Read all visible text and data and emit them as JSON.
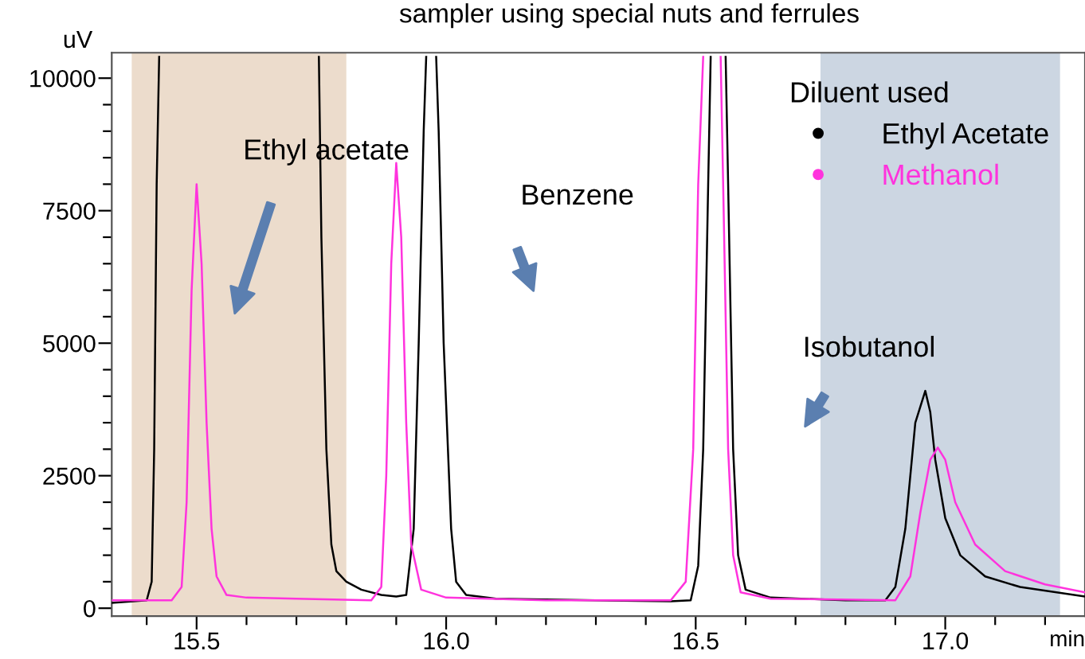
{
  "chart_data": {
    "type": "line",
    "title": "sampler using special nuts and ferrules",
    "ylabel": "uV",
    "xlabel": "min",
    "xlim": [
      15.33,
      17.28
    ],
    "ylim": [
      -150,
      10480
    ],
    "xticks": [
      {
        "value": 15.4,
        "label": null
      },
      {
        "value": 15.5,
        "label": "15.5"
      },
      {
        "value": 15.6,
        "label": null
      },
      {
        "value": 15.7,
        "label": null
      },
      {
        "value": 15.8,
        "label": null
      },
      {
        "value": 15.9,
        "label": null
      },
      {
        "value": 16.0,
        "label": "16.0"
      },
      {
        "value": 16.1,
        "label": null
      },
      {
        "value": 16.2,
        "label": null
      },
      {
        "value": 16.3,
        "label": null
      },
      {
        "value": 16.4,
        "label": null
      },
      {
        "value": 16.5,
        "label": "16.5"
      },
      {
        "value": 16.6,
        "label": null
      },
      {
        "value": 16.7,
        "label": null
      },
      {
        "value": 16.8,
        "label": null
      },
      {
        "value": 16.9,
        "label": null
      },
      {
        "value": 17.0,
        "label": "17.0"
      },
      {
        "value": 17.1,
        "label": null
      },
      {
        "value": 17.2,
        "label": null
      }
    ],
    "yticks": [
      0,
      {
        "value": 500,
        "label": null
      },
      {
        "value": 1000,
        "label": null
      },
      {
        "value": 1500,
        "label": null
      },
      {
        "value": 2000,
        "label": null
      },
      2500,
      {
        "value": 3000,
        "label": null
      },
      {
        "value": 3500,
        "label": null
      },
      {
        "value": 4000,
        "label": null
      },
      {
        "value": 4500,
        "label": null
      },
      5000,
      {
        "value": 5500,
        "label": null
      },
      {
        "value": 6000,
        "label": null
      },
      {
        "value": 6500,
        "label": null
      },
      {
        "value": 7000,
        "label": null
      },
      7500,
      {
        "value": 8000,
        "label": null
      },
      {
        "value": 8500,
        "label": null
      },
      {
        "value": 9000,
        "label": null
      },
      {
        "value": 9500,
        "label": null
      },
      10000
    ],
    "legend_title": "Diluent used",
    "legend": "top right",
    "grid": false,
    "marker": "none",
    "line_style": "solid",
    "series": [
      {
        "name": "Ethyl Acetate",
        "color": "#000000",
        "x": [
          15.33,
          15.4,
          15.41,
          15.415,
          15.42,
          15.425,
          15.43,
          15.74,
          15.745,
          15.75,
          15.76,
          15.77,
          15.78,
          15.8,
          15.83,
          15.87,
          15.9,
          15.92,
          15.935,
          15.945,
          15.955,
          15.96,
          15.97,
          15.98,
          15.985,
          15.995,
          16.01,
          16.02,
          16.04,
          16.1,
          16.3,
          16.45,
          16.49,
          16.505,
          16.515,
          16.525,
          16.53,
          16.545,
          16.56,
          16.565,
          16.575,
          16.585,
          16.6,
          16.65,
          16.8,
          16.88,
          16.9,
          16.92,
          16.94,
          16.96,
          16.97,
          16.98,
          17.0,
          17.03,
          17.08,
          17.15,
          17.28
        ],
        "values": [
          100,
          150,
          500,
          3000,
          8000,
          10400,
          null,
          null,
          10400,
          7000,
          3000,
          1200,
          700,
          500,
          350,
          250,
          220,
          250,
          1500,
          5000,
          9000,
          10400,
          null,
          10400,
          9000,
          5000,
          1500,
          500,
          250,
          180,
          150,
          130,
          150,
          800,
          3000,
          8000,
          10400,
          null,
          10400,
          8000,
          3000,
          1000,
          350,
          200,
          150,
          150,
          400,
          1500,
          3500,
          4100,
          3700,
          2800,
          1700,
          1000,
          600,
          400,
          220
        ]
      },
      {
        "name": "Methanol",
        "color": "#ff33dd",
        "x": [
          15.33,
          15.45,
          15.47,
          15.48,
          15.49,
          15.5,
          15.51,
          15.52,
          15.53,
          15.54,
          15.56,
          15.6,
          15.7,
          15.85,
          15.87,
          15.88,
          15.89,
          15.9,
          15.91,
          15.92,
          15.93,
          15.95,
          16.0,
          16.2,
          16.45,
          16.48,
          16.495,
          16.505,
          16.515,
          16.53,
          16.55,
          16.555,
          16.565,
          16.575,
          16.59,
          16.65,
          16.9,
          16.93,
          16.95,
          16.97,
          16.985,
          17.0,
          17.02,
          17.06,
          17.12,
          17.2,
          17.28
        ],
        "values": [
          150,
          150,
          400,
          2000,
          6000,
          8000,
          6500,
          3500,
          1500,
          600,
          250,
          200,
          180,
          150,
          400,
          2500,
          6500,
          8400,
          7000,
          3500,
          1200,
          350,
          200,
          150,
          150,
          500,
          3000,
          8000,
          10400,
          null,
          10400,
          8000,
          3000,
          1000,
          300,
          180,
          150,
          600,
          1800,
          2800,
          3030,
          2800,
          2000,
          1200,
          700,
          450,
          300
        ]
      }
    ],
    "bands": [
      {
        "axis": "x",
        "from": 15.37,
        "to": 15.8,
        "color": "#ecdccc"
      },
      {
        "axis": "x",
        "from": 16.75,
        "to": 17.23,
        "color": "#ccd6e2"
      }
    ],
    "annotations": [
      "Ethyl acetate",
      "Benzene",
      "Isobutanol"
    ]
  }
}
